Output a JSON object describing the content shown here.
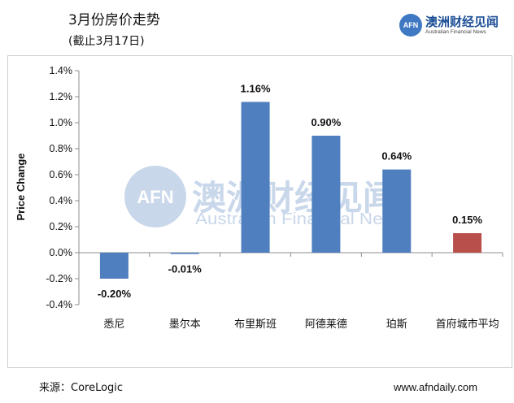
{
  "header": {
    "title": "3月份房价走势",
    "subtitle": "(截止3月17日)"
  },
  "logo": {
    "badge": "AFN",
    "name_cn": "澳洲财经见闻",
    "name_en": "Australian Financial News"
  },
  "watermark": {
    "badge": "AFN",
    "name_cn": "澳洲财经见闻",
    "name_en": "Australian Financial News"
  },
  "footer": {
    "source": "来源：CoreLogic",
    "site": "www.afndaily.com"
  },
  "colors": {
    "primary_bar": "#4f7fbf",
    "highlight_bar": "#b84f4a",
    "axis": "#8c8c8c"
  },
  "chart_data": {
    "type": "bar",
    "ylabel": "Price Change",
    "xlabel": "",
    "categories": [
      "悉尼",
      "墨尔本",
      "布里斯班",
      "阿德莱德",
      "珀斯",
      "首府城市平均"
    ],
    "values": [
      -0.2,
      -0.01,
      1.16,
      0.9,
      0.64,
      0.15
    ],
    "value_labels": [
      "-0.20%",
      "-0.01%",
      "1.16%",
      "0.90%",
      "0.64%",
      "0.15%"
    ],
    "highlight_index": 5,
    "ylim": [
      -0.4,
      1.4
    ],
    "yticks": [
      1.4,
      1.2,
      1.0,
      0.8,
      0.6,
      0.4,
      0.2,
      0.0,
      -0.2,
      -0.4
    ],
    "ytick_labels": [
      "1.4%",
      "1.2%",
      "1.0%",
      "0.8%",
      "0.6%",
      "0.4%",
      "0.2%",
      "0.0%",
      "-0.2%",
      "-0.4%"
    ],
    "grid": false,
    "legend": "none"
  }
}
